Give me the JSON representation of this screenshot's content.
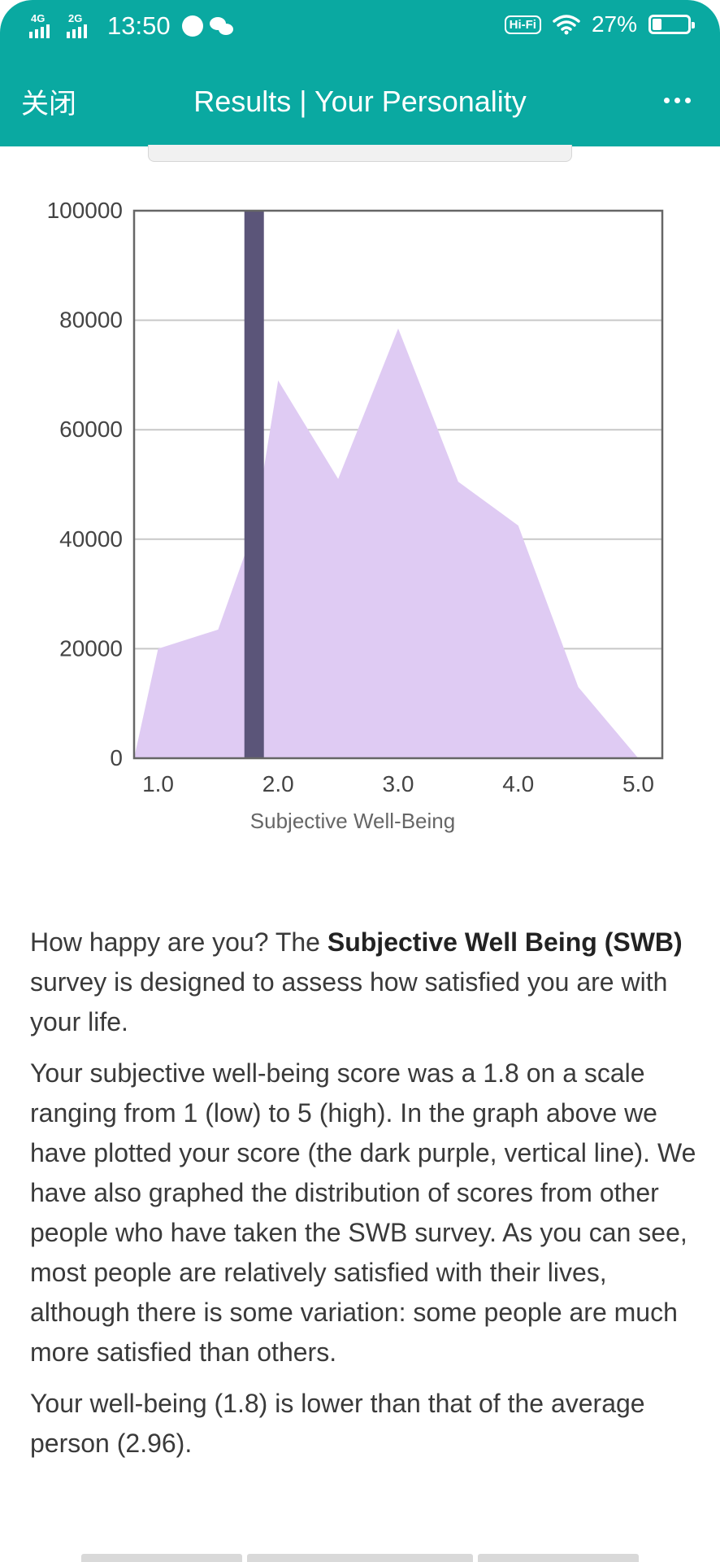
{
  "status_bar": {
    "signal_1": "4G",
    "signal_2": "2G",
    "time": "13:50",
    "hifi": "Hi-Fi",
    "battery_percent": "27%",
    "battery_level": 0.27
  },
  "nav": {
    "close_label": "关闭",
    "title": "Results | Your Personality",
    "more_icon": "more-icon"
  },
  "chart_data": {
    "type": "area",
    "x": [
      1.0,
      1.5,
      1.8,
      2.0,
      2.5,
      3.0,
      3.5,
      4.0,
      4.5,
      5.0
    ],
    "values": [
      20000,
      23500,
      42000,
      69000,
      51000,
      78500,
      50500,
      42500,
      13000,
      0
    ],
    "x_start": 0.8,
    "x_end": 5.2,
    "xticks": [
      "1.0",
      "2.0",
      "3.0",
      "4.0",
      "5.0"
    ],
    "yticks": [
      "100000",
      "80000",
      "60000",
      "40000",
      "20000",
      "0"
    ],
    "xlim": [
      0.8,
      5.2
    ],
    "ylim": [
      0,
      100000
    ],
    "xlabel": "Subjective Well-Being",
    "ylabel": "",
    "marker": {
      "x": 1.8,
      "color": "#5b5579"
    },
    "fill_color": "#dfcbf3",
    "grid": true
  },
  "content": {
    "p1_pre": "How happy are you? The ",
    "p1_bold": "Subjective Well Being (SWB)",
    "p1_post": " survey is designed to assess how satisfied you are with your life.",
    "p2": "Your subjective well-being score was a 1.8 on a scale ranging from 1 (low) to 5 (high). In the graph above we have plotted your score (the dark purple, vertical line). We have also graphed the distribution of scores from other people who have taken the SWB survey. As you can see, most people are relatively satisfied with their lives, although there is some variation: some people are much more satisfied than others.",
    "p3": "Your well-being (1.8) is lower than that of the average person (2.96)."
  },
  "colors": {
    "header": "#0aa9a1",
    "text": "#3a3a3a"
  }
}
